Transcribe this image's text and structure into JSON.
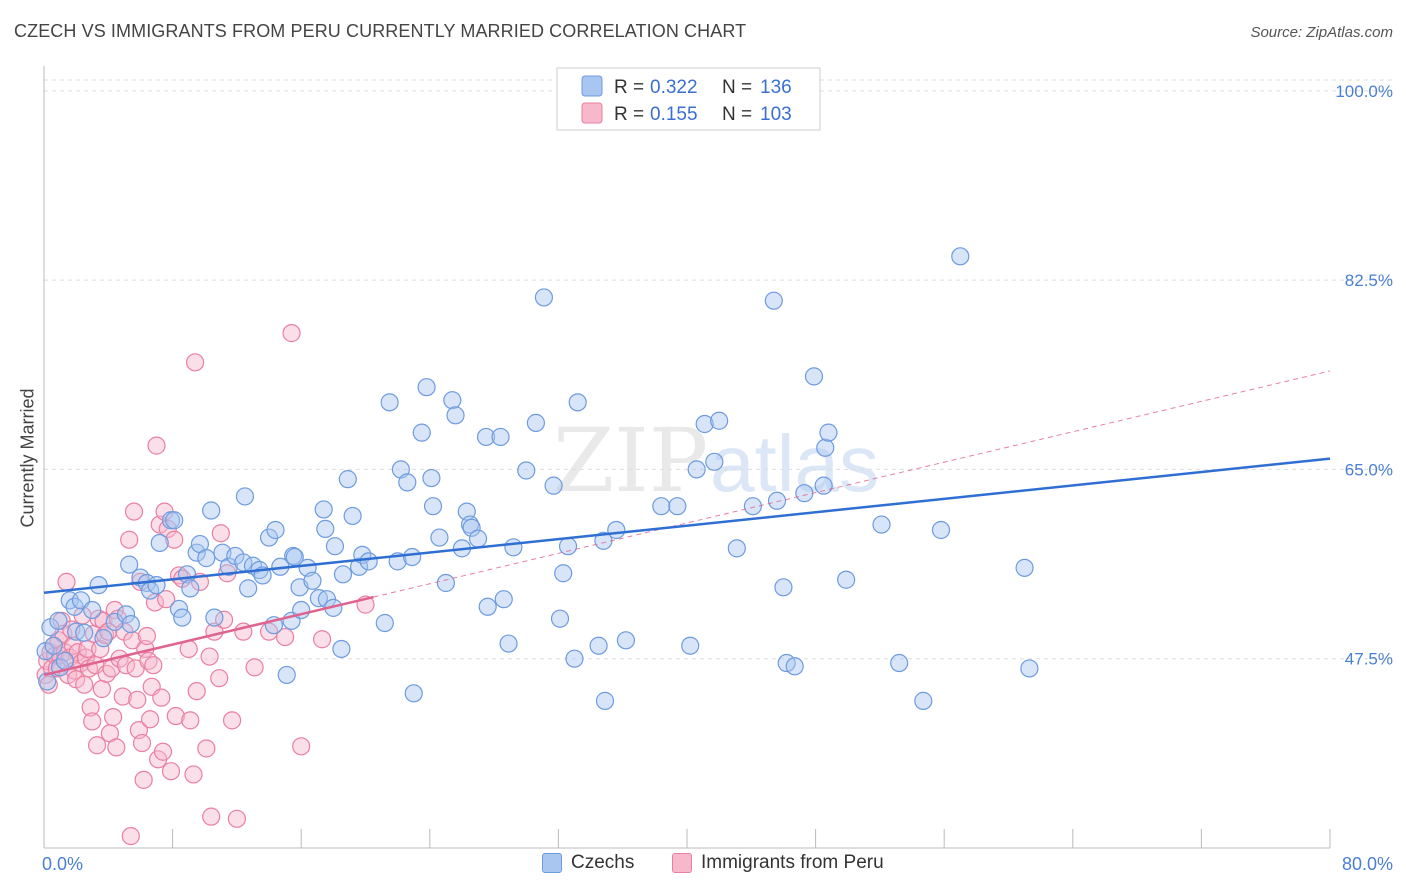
{
  "title": "CZECH VS IMMIGRANTS FROM PERU CURRENTLY MARRIED CORRELATION CHART",
  "source": "Source: ZipAtlas.com",
  "watermark": {
    "zip": "ZIP",
    "atlas": "atlas"
  },
  "colors": {
    "blue_fill": "#a9c6f0",
    "blue_stroke": "#6d9be0",
    "blue_line": "#2f6fd3",
    "pink_fill": "#f7b8cc",
    "pink_stroke": "#ea7fa1",
    "pink_line": "#e0628e",
    "axis_text": "#4a7fd4",
    "grid": "#dddddd"
  },
  "stats": [
    {
      "r_label": "R =",
      "r": "0.322",
      "n_label": "N =",
      "n": "136"
    },
    {
      "r_label": "R =",
      "r": "0.155",
      "n_label": "N =",
      "n": "103"
    }
  ],
  "legend": {
    "czechs": "Czechs",
    "peru": "Immigrants from Peru"
  },
  "chart_data": {
    "type": "scatter",
    "xlabel": "",
    "ylabel": "Currently Married",
    "xlim": [
      0,
      80
    ],
    "ylim": [
      30,
      101
    ],
    "x_tick_labels": [
      "0.0%",
      "80.0%"
    ],
    "y_ticks": [
      47.5,
      65.0,
      82.5,
      100.0
    ],
    "y_tick_labels": [
      "47.5%",
      "65.0%",
      "82.5%",
      "100.0%"
    ],
    "grid": "horizontal dashed",
    "legend_position": "bottom-center",
    "series": [
      {
        "name": "Czechs",
        "trend": {
          "x": [
            0,
            80
          ],
          "y": [
            53.6,
            66.0
          ]
        },
        "points": [
          [
            0.1,
            48.2
          ],
          [
            0.2,
            45.4
          ],
          [
            0.4,
            50.4
          ],
          [
            0.6,
            48.7
          ],
          [
            0.9,
            51.0
          ],
          [
            1.0,
            46.7
          ],
          [
            1.3,
            47.3
          ],
          [
            1.6,
            52.9
          ],
          [
            1.9,
            52.3
          ],
          [
            2.0,
            50.0
          ],
          [
            2.3,
            52.9
          ],
          [
            2.5,
            49.9
          ],
          [
            3.0,
            52.0
          ],
          [
            3.4,
            54.3
          ],
          [
            3.7,
            49.4
          ],
          [
            4.4,
            50.9
          ],
          [
            5.1,
            51.6
          ],
          [
            5.3,
            56.2
          ],
          [
            5.4,
            50.7
          ],
          [
            6.0,
            55.0
          ],
          [
            6.4,
            54.5
          ],
          [
            6.6,
            53.8
          ],
          [
            7.0,
            54.3
          ],
          [
            7.2,
            58.2
          ],
          [
            7.9,
            60.3
          ],
          [
            8.1,
            60.3
          ],
          [
            8.4,
            52.1
          ],
          [
            8.6,
            51.3
          ],
          [
            8.9,
            55.3
          ],
          [
            9.1,
            54.0
          ],
          [
            9.5,
            57.3
          ],
          [
            9.7,
            58.1
          ],
          [
            10.1,
            56.8
          ],
          [
            10.4,
            61.2
          ],
          [
            10.6,
            51.3
          ],
          [
            11.1,
            57.3
          ],
          [
            11.5,
            56.0
          ],
          [
            11.9,
            57.0
          ],
          [
            12.4,
            56.4
          ],
          [
            12.5,
            62.5
          ],
          [
            12.7,
            54.0
          ],
          [
            13.0,
            56.1
          ],
          [
            13.4,
            55.7
          ],
          [
            13.6,
            55.2
          ],
          [
            14.0,
            58.7
          ],
          [
            14.3,
            50.6
          ],
          [
            14.4,
            59.4
          ],
          [
            14.7,
            56.0
          ],
          [
            15.1,
            46.0
          ],
          [
            15.4,
            51.0
          ],
          [
            15.5,
            57.0
          ],
          [
            15.6,
            56.9
          ],
          [
            15.9,
            54.1
          ],
          [
            16.0,
            52.0
          ],
          [
            16.4,
            55.9
          ],
          [
            16.7,
            54.7
          ],
          [
            17.1,
            53.1
          ],
          [
            17.4,
            61.3
          ],
          [
            17.5,
            59.5
          ],
          [
            17.6,
            53.0
          ],
          [
            18.0,
            52.2
          ],
          [
            18.1,
            57.9
          ],
          [
            18.5,
            48.4
          ],
          [
            18.6,
            55.3
          ],
          [
            18.9,
            64.1
          ],
          [
            19.2,
            60.7
          ],
          [
            19.6,
            56.0
          ],
          [
            19.8,
            57.1
          ],
          [
            20.2,
            56.5
          ],
          [
            21.2,
            50.8
          ],
          [
            21.5,
            71.2
          ],
          [
            22.0,
            56.5
          ],
          [
            22.2,
            65.0
          ],
          [
            22.6,
            63.8
          ],
          [
            22.9,
            56.9
          ],
          [
            23.0,
            44.3
          ],
          [
            23.5,
            68.4
          ],
          [
            23.8,
            72.6
          ],
          [
            24.1,
            64.2
          ],
          [
            24.2,
            61.6
          ],
          [
            24.6,
            58.7
          ],
          [
            25.0,
            54.5
          ],
          [
            25.4,
            71.4
          ],
          [
            25.6,
            70.0
          ],
          [
            26.0,
            57.7
          ],
          [
            26.3,
            61.1
          ],
          [
            26.5,
            59.9
          ],
          [
            26.6,
            59.6
          ],
          [
            27.0,
            58.6
          ],
          [
            27.5,
            68.0
          ],
          [
            27.6,
            52.3
          ],
          [
            28.4,
            68.0
          ],
          [
            28.6,
            53.0
          ],
          [
            28.9,
            48.9
          ],
          [
            29.2,
            57.8
          ],
          [
            30.0,
            64.9
          ],
          [
            30.6,
            69.3
          ],
          [
            31.1,
            80.9
          ],
          [
            31.7,
            63.5
          ],
          [
            32.1,
            51.2
          ],
          [
            32.3,
            55.4
          ],
          [
            32.6,
            57.9
          ],
          [
            33.0,
            47.5
          ],
          [
            33.2,
            71.2
          ],
          [
            34.5,
            48.7
          ],
          [
            34.8,
            58.4
          ],
          [
            34.9,
            43.6
          ],
          [
            35.6,
            59.4
          ],
          [
            36.2,
            49.2
          ],
          [
            38.4,
            61.6
          ],
          [
            39.4,
            61.6
          ],
          [
            40.2,
            48.7
          ],
          [
            40.6,
            65.0
          ],
          [
            41.1,
            69.2
          ],
          [
            41.7,
            65.7
          ],
          [
            42.0,
            69.5
          ],
          [
            43.1,
            57.7
          ],
          [
            44.1,
            61.6
          ],
          [
            45.4,
            80.6
          ],
          [
            45.6,
            62.1
          ],
          [
            46.0,
            54.1
          ],
          [
            46.2,
            47.1
          ],
          [
            46.7,
            46.8
          ],
          [
            47.3,
            62.8
          ],
          [
            47.9,
            73.6
          ],
          [
            48.5,
            63.5
          ],
          [
            48.6,
            67.0
          ],
          [
            48.8,
            68.4
          ],
          [
            49.9,
            54.8
          ],
          [
            52.1,
            59.9
          ],
          [
            53.2,
            47.1
          ],
          [
            54.7,
            43.6
          ],
          [
            55.8,
            59.4
          ],
          [
            57.0,
            84.7
          ],
          [
            61.0,
            55.9
          ],
          [
            61.3,
            46.6
          ]
        ]
      },
      {
        "name": "Immigrants from Peru",
        "trend": {
          "x": [
            0,
            20.5
          ],
          "y": [
            46.0,
            53.2
          ]
        },
        "trend_extension": {
          "x": [
            20.5,
            80
          ],
          "y": [
            53.2,
            74.1
          ]
        },
        "points": [
          [
            0.1,
            46.0
          ],
          [
            0.2,
            47.3
          ],
          [
            0.3,
            45.1
          ],
          [
            0.4,
            48.1
          ],
          [
            0.5,
            46.6
          ],
          [
            0.6,
            48.7
          ],
          [
            0.7,
            47.8
          ],
          [
            0.8,
            46.6
          ],
          [
            0.9,
            49.2
          ],
          [
            1.0,
            47.8
          ],
          [
            1.1,
            51.0
          ],
          [
            1.2,
            49.8
          ],
          [
            1.3,
            48.1
          ],
          [
            1.4,
            54.6
          ],
          [
            1.5,
            46.0
          ],
          [
            1.6,
            47.6
          ],
          [
            1.7,
            50.2
          ],
          [
            1.8,
            48.7
          ],
          [
            1.9,
            46.4
          ],
          [
            2.0,
            45.6
          ],
          [
            2.1,
            48.1
          ],
          [
            2.3,
            47.1
          ],
          [
            2.4,
            51.5
          ],
          [
            2.5,
            45.1
          ],
          [
            2.6,
            47.6
          ],
          [
            2.7,
            48.4
          ],
          [
            2.8,
            46.6
          ],
          [
            2.9,
            43.0
          ],
          [
            3.0,
            41.7
          ],
          [
            3.1,
            49.8
          ],
          [
            3.2,
            46.9
          ],
          [
            3.3,
            39.5
          ],
          [
            3.4,
            51.2
          ],
          [
            3.5,
            48.4
          ],
          [
            3.6,
            44.7
          ],
          [
            3.7,
            51.0
          ],
          [
            3.8,
            49.7
          ],
          [
            3.9,
            46.1
          ],
          [
            4.0,
            50.0
          ],
          [
            4.1,
            40.6
          ],
          [
            4.2,
            46.6
          ],
          [
            4.3,
            42.1
          ],
          [
            4.4,
            52.0
          ],
          [
            4.5,
            39.3
          ],
          [
            4.6,
            51.2
          ],
          [
            4.7,
            47.5
          ],
          [
            4.9,
            44.0
          ],
          [
            5.0,
            50.0
          ],
          [
            5.1,
            46.9
          ],
          [
            5.3,
            58.5
          ],
          [
            5.4,
            31.1
          ],
          [
            5.5,
            49.2
          ],
          [
            5.6,
            61.1
          ],
          [
            5.7,
            46.6
          ],
          [
            5.8,
            43.7
          ],
          [
            5.9,
            40.9
          ],
          [
            6.0,
            54.6
          ],
          [
            6.1,
            39.7
          ],
          [
            6.2,
            36.3
          ],
          [
            6.3,
            48.4
          ],
          [
            6.4,
            49.6
          ],
          [
            6.5,
            47.3
          ],
          [
            6.6,
            41.9
          ],
          [
            6.7,
            44.9
          ],
          [
            6.8,
            46.9
          ],
          [
            6.9,
            52.7
          ],
          [
            7.0,
            67.2
          ],
          [
            7.1,
            38.2
          ],
          [
            7.2,
            59.9
          ],
          [
            7.3,
            43.9
          ],
          [
            7.4,
            38.9
          ],
          [
            7.5,
            61.1
          ],
          [
            7.6,
            53.0
          ],
          [
            7.7,
            59.5
          ],
          [
            7.9,
            37.1
          ],
          [
            8.1,
            58.5
          ],
          [
            8.2,
            42.2
          ],
          [
            8.4,
            55.2
          ],
          [
            8.6,
            54.9
          ],
          [
            9.0,
            48.4
          ],
          [
            9.1,
            41.8
          ],
          [
            9.3,
            36.8
          ],
          [
            9.4,
            74.9
          ],
          [
            9.5,
            44.5
          ],
          [
            9.7,
            54.6
          ],
          [
            10.1,
            39.2
          ],
          [
            10.3,
            47.7
          ],
          [
            10.4,
            32.9
          ],
          [
            10.6,
            50.0
          ],
          [
            10.9,
            45.7
          ],
          [
            11.0,
            59.1
          ],
          [
            11.2,
            51.1
          ],
          [
            11.4,
            55.4
          ],
          [
            11.7,
            41.8
          ],
          [
            12.0,
            32.7
          ],
          [
            12.4,
            50.0
          ],
          [
            13.1,
            46.7
          ],
          [
            14.0,
            50.0
          ],
          [
            15.0,
            49.5
          ],
          [
            15.4,
            77.6
          ],
          [
            16.0,
            39.4
          ],
          [
            17.3,
            49.3
          ],
          [
            20.0,
            52.5
          ]
        ]
      }
    ]
  }
}
